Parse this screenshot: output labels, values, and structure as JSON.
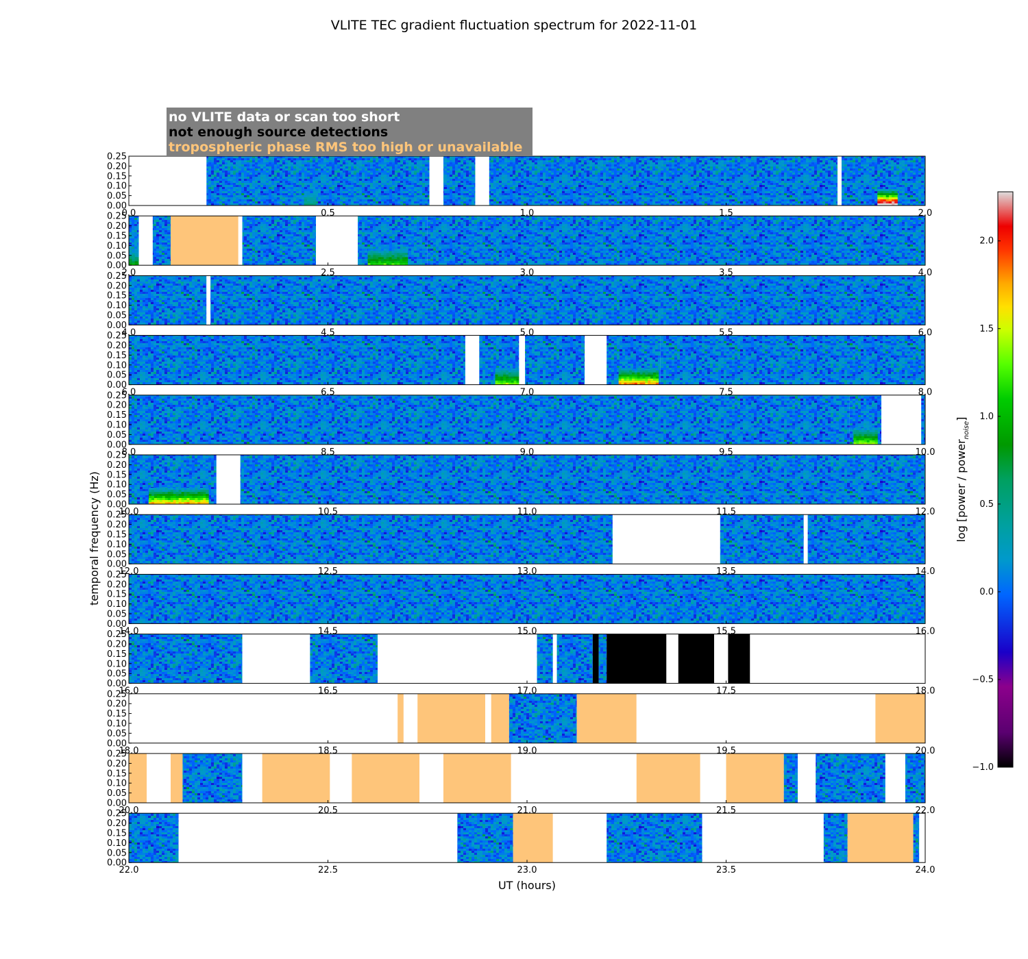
{
  "chart_data": {
    "type": "heatmap",
    "title": "VLITE TEC gradient fluctuation spectrum for 2022-11-01",
    "xlabel": "UT (hours)",
    "ylabel": "temporal frequency (Hz)",
    "colorbar": {
      "label": "log [power / power",
      "label_sub": "noise",
      "label_end": "]",
      "range": [
        -1.0,
        2.28
      ],
      "ticks": [
        "−1.0",
        "−0.5",
        "0.0",
        "0.5",
        "1.0",
        "1.5",
        "2.0"
      ],
      "tick_values": [
        -1.0,
        -0.5,
        0.0,
        0.5,
        1.0,
        1.5,
        2.0
      ]
    },
    "y_ticks": [
      "0.00",
      "0.05",
      "0.10",
      "0.15",
      "0.20",
      "0.25"
    ],
    "y_values": [
      0.0,
      0.05,
      0.1,
      0.15,
      0.2,
      0.25
    ],
    "legend": {
      "no_data": "no VLITE data or scan too short",
      "few_sources": "not enough source detections",
      "tropo": "tropospheric phase RMS too high or unavailable"
    },
    "status_colors": {
      "no_data": "#ffffff",
      "few_sources": "#000000",
      "tropo": "#fec57a",
      "legend_bg": "#808080"
    },
    "panels": [
      {
        "start": 0,
        "ticks": [
          "0.0",
          "0.5",
          "1.0",
          "1.5",
          "2.0"
        ],
        "segments": [
          [
            "none",
            0,
            0.195
          ],
          [
            "data",
            0.195,
            0.755,
            {
              "hot": [
                0.44,
                0.47,
                0.5
              ]
            }
          ],
          [
            "none",
            0.755,
            0.79
          ],
          [
            "data",
            0.79,
            0.87
          ],
          [
            "none",
            0.87,
            0.905
          ],
          [
            "data",
            0.905,
            1.78
          ],
          [
            "none",
            1.78,
            1.79
          ],
          [
            "data",
            1.79,
            2.0,
            {
              "hot": [
                1.88,
                1.93,
                2.4
              ]
            }
          ]
        ]
      },
      {
        "start": 2,
        "ticks": [
          "2.0",
          "2.5",
          "3.0",
          "3.5",
          "4.0"
        ],
        "segments": [
          [
            "data",
            2.0,
            2.025,
            {
              "hot": [
                2.0,
                2.03,
                0.9
              ]
            }
          ],
          [
            "none",
            2.025,
            2.06
          ],
          [
            "data",
            2.06,
            2.105
          ],
          [
            "tropo",
            2.105,
            2.275
          ],
          [
            "none",
            2.275,
            2.285
          ],
          [
            "data",
            2.285,
            2.47
          ],
          [
            "none",
            2.47,
            2.575
          ],
          [
            "data",
            2.575,
            2.75,
            {
              "hot": [
                2.6,
                2.7,
                1.2
              ]
            }
          ],
          [
            "data",
            2.75,
            4.0
          ]
        ]
      },
      {
        "start": 4,
        "ticks": [
          "4.0",
          "4.5",
          "5.0",
          "5.5",
          "6.0"
        ],
        "segments": [
          [
            "data",
            4.0,
            4.195
          ],
          [
            "none",
            4.195,
            4.205
          ],
          [
            "data",
            4.205,
            6.0
          ]
        ]
      },
      {
        "start": 6,
        "ticks": [
          "6.0",
          "6.5",
          "7.0",
          "7.5",
          "8.0"
        ],
        "segments": [
          [
            "data",
            6.0,
            6.845
          ],
          [
            "none",
            6.845,
            6.88
          ],
          [
            "data",
            6.88,
            6.98,
            {
              "hot": [
                6.92,
                6.98,
                1.3
              ]
            }
          ],
          [
            "none",
            6.98,
            6.995
          ],
          [
            "data",
            6.995,
            7.145
          ],
          [
            "none",
            7.145,
            7.2
          ],
          [
            "data",
            7.2,
            7.335,
            {
              "hot": [
                7.23,
                7.33,
                1.8
              ]
            }
          ],
          [
            "data",
            7.335,
            8.0
          ]
        ]
      },
      {
        "start": 8,
        "ticks": [
          "8.0",
          "8.5",
          "9.0",
          "9.5",
          "10.0"
        ],
        "segments": [
          [
            "data",
            8.0,
            9.81
          ],
          [
            "data",
            9.81,
            9.89,
            {
              "hot": [
                9.82,
                9.88,
                1.4
              ]
            }
          ],
          [
            "none",
            9.89,
            9.99
          ],
          [
            "data",
            9.99,
            10.0
          ]
        ]
      },
      {
        "start": 10,
        "ticks": [
          "10.0",
          "10.5",
          "11.0",
          "11.5",
          "12.0"
        ],
        "segments": [
          [
            "data",
            10.0,
            10.22,
            {
              "hot": [
                10.05,
                10.2,
                1.7
              ]
            }
          ],
          [
            "none",
            10.22,
            10.28
          ],
          [
            "data",
            10.28,
            12.0
          ]
        ]
      },
      {
        "start": 12,
        "ticks": [
          "12.0",
          "12.5",
          "13.0",
          "13.5",
          "14.0"
        ],
        "segments": [
          [
            "data",
            12.0,
            13.215
          ],
          [
            "none",
            13.215,
            13.485
          ],
          [
            "data",
            13.485,
            13.695
          ],
          [
            "none",
            13.695,
            13.705
          ],
          [
            "data",
            13.705,
            14.0
          ]
        ]
      },
      {
        "start": 14,
        "ticks": [
          "14.0",
          "14.5",
          "15.0",
          "15.5",
          "16.0"
        ],
        "segments": [
          [
            "data",
            14.0,
            16.0
          ]
        ]
      },
      {
        "start": 16,
        "ticks": [
          "16.0",
          "16.5",
          "17.0",
          "17.5",
          "18.0"
        ],
        "segments": [
          [
            "data",
            16.0,
            16.285
          ],
          [
            "none",
            16.285,
            16.455
          ],
          [
            "data",
            16.455,
            16.625
          ],
          [
            "none",
            16.625,
            17.025
          ],
          [
            "data",
            17.025,
            17.065
          ],
          [
            "none",
            17.065,
            17.075
          ],
          [
            "data",
            17.075,
            17.165
          ],
          [
            "black",
            17.165,
            17.18
          ],
          [
            "data",
            17.18,
            17.2
          ],
          [
            "black",
            17.2,
            17.35
          ],
          [
            "none",
            17.35,
            17.38
          ],
          [
            "black",
            17.38,
            17.47
          ],
          [
            "none",
            17.47,
            17.505
          ],
          [
            "black",
            17.505,
            17.56
          ],
          [
            "none",
            17.56,
            18.0
          ]
        ]
      },
      {
        "start": 18,
        "ticks": [
          "18.0",
          "18.5",
          "19.0",
          "19.5",
          "20.0"
        ],
        "segments": [
          [
            "none",
            18.0,
            18.675
          ],
          [
            "tropo",
            18.675,
            18.69
          ],
          [
            "none",
            18.69,
            18.725
          ],
          [
            "tropo",
            18.725,
            18.895
          ],
          [
            "none",
            18.895,
            18.91
          ],
          [
            "tropo",
            18.91,
            18.955
          ],
          [
            "data",
            18.955,
            19.125
          ],
          [
            "tropo",
            19.125,
            19.275
          ],
          [
            "none",
            19.275,
            19.875
          ],
          [
            "tropo",
            19.875,
            20.0
          ]
        ]
      },
      {
        "start": 20,
        "ticks": [
          "20.0",
          "20.5",
          "21.0",
          "21.5",
          "22.0"
        ],
        "segments": [
          [
            "tropo",
            20.0,
            20.045
          ],
          [
            "none",
            20.045,
            20.105
          ],
          [
            "tropo",
            20.105,
            20.135
          ],
          [
            "data",
            20.135,
            20.285
          ],
          [
            "none",
            20.285,
            20.335
          ],
          [
            "tropo",
            20.335,
            20.505
          ],
          [
            "none",
            20.505,
            20.56
          ],
          [
            "tropo",
            20.56,
            20.73
          ],
          [
            "none",
            20.73,
            20.79
          ],
          [
            "tropo",
            20.79,
            20.96
          ],
          [
            "none",
            20.96,
            21.275
          ],
          [
            "tropo",
            21.275,
            21.435
          ],
          [
            "none",
            21.435,
            21.5
          ],
          [
            "tropo",
            21.5,
            21.645
          ],
          [
            "data",
            21.645,
            21.68
          ],
          [
            "none",
            21.68,
            21.725
          ],
          [
            "data",
            21.725,
            21.9
          ],
          [
            "none",
            21.9,
            21.95
          ],
          [
            "data",
            21.95,
            22.0
          ]
        ]
      },
      {
        "start": 22,
        "ticks": [
          "22.0",
          "22.5",
          "23.0",
          "23.5",
          "24.0"
        ],
        "segments": [
          [
            "data",
            22.0,
            22.125
          ],
          [
            "none",
            22.125,
            22.825
          ],
          [
            "data",
            22.825,
            22.965
          ],
          [
            "tropo",
            22.965,
            23.065
          ],
          [
            "none",
            23.065,
            23.2
          ],
          [
            "data",
            23.2,
            23.44
          ],
          [
            "none",
            23.44,
            23.745
          ],
          [
            "data",
            23.745,
            23.805
          ],
          [
            "tropo",
            23.805,
            23.97
          ],
          [
            "data",
            23.97,
            23.985
          ],
          [
            "none",
            23.985,
            24.0
          ]
        ]
      }
    ]
  }
}
